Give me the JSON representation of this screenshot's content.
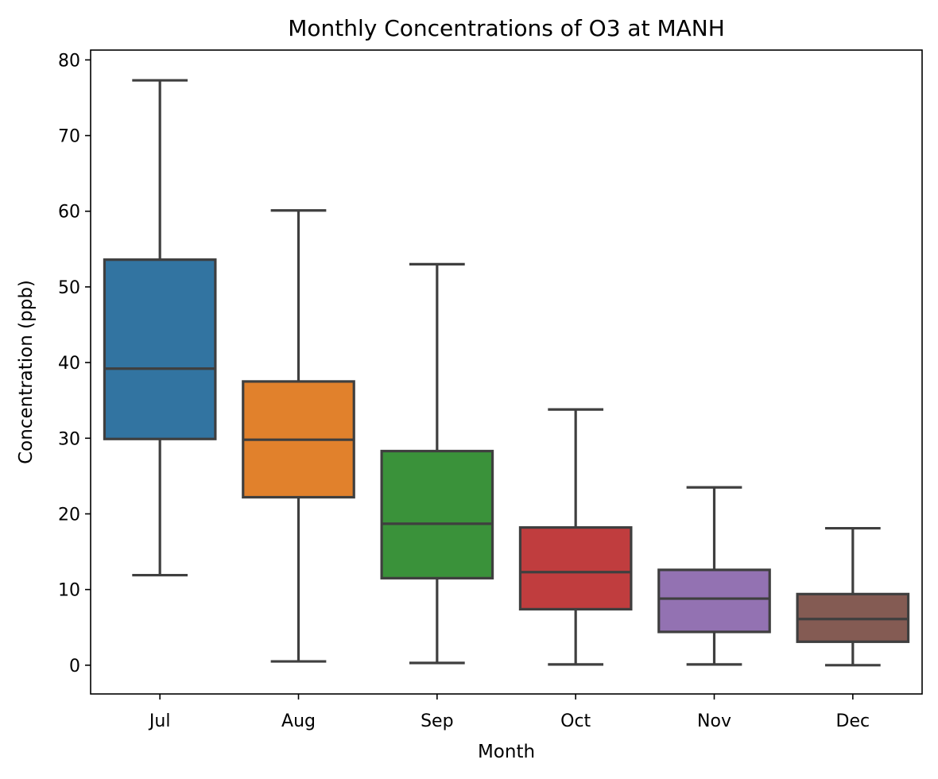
{
  "chart_data": {
    "type": "box",
    "title": "Monthly Concentrations of O3 at MANH",
    "xlabel": "Month",
    "ylabel": "Concentration (ppb)",
    "ylim": [
      -3.8,
      81.3
    ],
    "yticks": [
      0,
      10,
      20,
      30,
      40,
      50,
      60,
      70,
      80
    ],
    "grid": false,
    "categories": [
      "Jul",
      "Aug",
      "Sep",
      "Oct",
      "Nov",
      "Dec"
    ],
    "boxes": [
      {
        "category": "Jul",
        "whisker_low": 11.9,
        "q1": 29.9,
        "median": 39.2,
        "q3": 53.6,
        "whisker_high": 77.3,
        "color": "#3274a1"
      },
      {
        "category": "Aug",
        "whisker_low": 0.5,
        "q1": 22.2,
        "median": 29.8,
        "q3": 37.5,
        "whisker_high": 60.1,
        "color": "#e1812c"
      },
      {
        "category": "Sep",
        "whisker_low": 0.3,
        "q1": 11.5,
        "median": 18.7,
        "q3": 28.3,
        "whisker_high": 53.0,
        "color": "#3a923a"
      },
      {
        "category": "Oct",
        "whisker_low": 0.1,
        "q1": 7.4,
        "median": 12.3,
        "q3": 18.2,
        "whisker_high": 33.8,
        "color": "#c03d3e"
      },
      {
        "category": "Nov",
        "whisker_low": 0.1,
        "q1": 4.4,
        "median": 8.8,
        "q3": 12.6,
        "whisker_high": 23.5,
        "color": "#9372b2"
      },
      {
        "category": "Dec",
        "whisker_low": 0.0,
        "q1": 3.1,
        "median": 6.1,
        "q3": 9.4,
        "whisker_high": 18.1,
        "color": "#845b53"
      }
    ],
    "line_color": "#3f3f3f"
  }
}
